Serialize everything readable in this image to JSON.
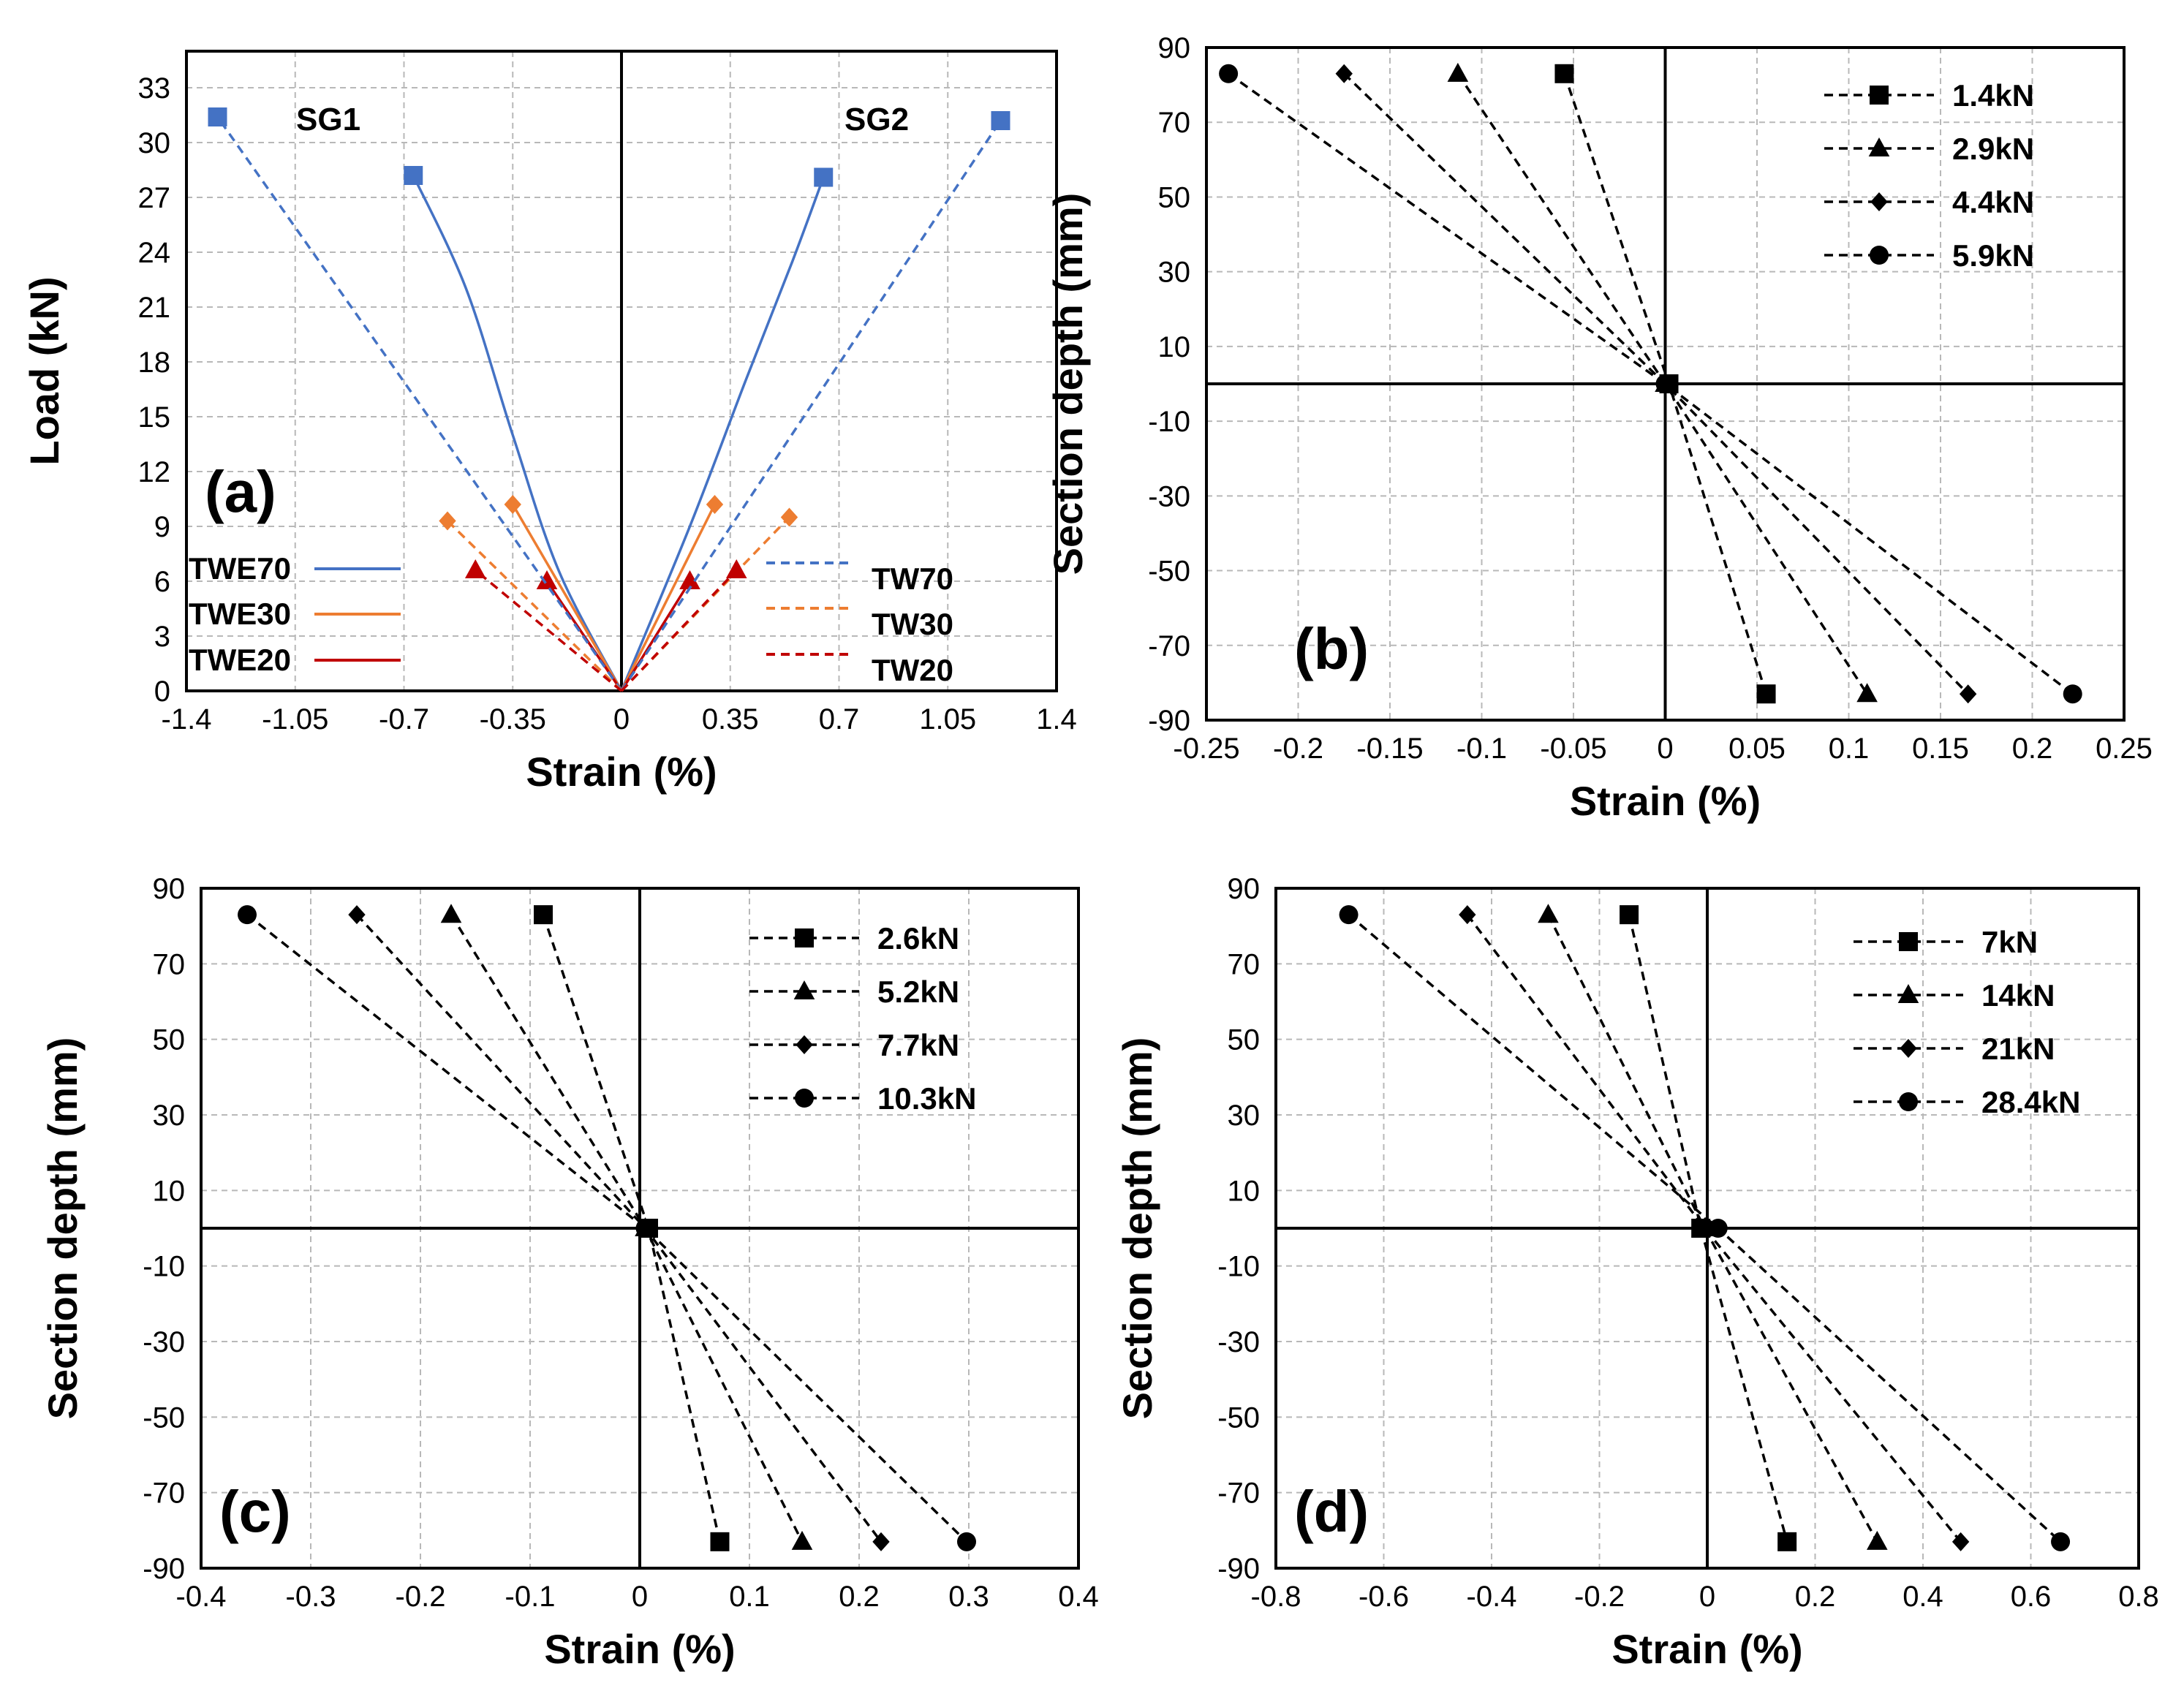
{
  "chart_data": [
    {
      "type": "line",
      "panel_label": "(a)",
      "title": "",
      "xlabel": "Strain (%)",
      "ylabel": "Load (kN)",
      "xlim": [
        -1.4,
        1.4
      ],
      "ylim": [
        0,
        35
      ],
      "xticks": [
        -1.4,
        -1.05,
        -0.7,
        -0.35,
        0,
        0.35,
        0.7,
        1.05,
        1.4
      ],
      "xtick_labels": [
        "-1.4",
        "-1.05",
        "-0.7",
        "-0.35",
        "0",
        "0.35",
        "0.7",
        "1.05",
        "1.4"
      ],
      "yticks": [
        0,
        3,
        6,
        9,
        12,
        15,
        18,
        21,
        24,
        27,
        30,
        33
      ],
      "ytick_labels": [
        "0",
        "3",
        "6",
        "9",
        "12",
        "15",
        "18",
        "21",
        "24",
        "27",
        "30",
        "33"
      ],
      "annotations": [
        "SG1",
        "SG2"
      ],
      "series": [
        {
          "name": "TWE70",
          "color": "#4472C4",
          "dash": "solid",
          "marker": "square",
          "points": [
            [
              0,
              0
            ],
            [
              -0.2,
              6.5
            ],
            [
              -0.35,
              14
            ],
            [
              -0.5,
              22
            ],
            [
              -0.67,
              28.2
            ]
          ]
        },
        {
          "name": "TWE70",
          "color": "#4472C4",
          "dash": "solid",
          "marker": "square",
          "legend": false,
          "points": [
            [
              0,
              0
            ],
            [
              0.22,
              9
            ],
            [
              0.4,
              17
            ],
            [
              0.55,
              23.5
            ],
            [
              0.65,
              28.1
            ]
          ]
        },
        {
          "name": "TWE30",
          "color": "#ED7D31",
          "dash": "solid",
          "marker": "diamond",
          "points": [
            [
              0,
              0
            ],
            [
              -0.35,
              10.2
            ]
          ]
        },
        {
          "name": "TWE30",
          "color": "#ED7D31",
          "dash": "solid",
          "marker": "diamond",
          "legend": false,
          "points": [
            [
              0,
              0
            ],
            [
              0.3,
              10.2
            ]
          ]
        },
        {
          "name": "TWE20",
          "color": "#C00000",
          "dash": "solid",
          "marker": "triangle",
          "points": [
            [
              0,
              0
            ],
            [
              -0.24,
              6
            ]
          ]
        },
        {
          "name": "TWE20",
          "color": "#C00000",
          "dash": "solid",
          "marker": "triangle",
          "legend": false,
          "points": [
            [
              0,
              0
            ],
            [
              0.22,
              6
            ]
          ]
        },
        {
          "name": "TW70",
          "color": "#4472C4",
          "dash": "dashed",
          "marker": "square",
          "points": [
            [
              0,
              0
            ],
            [
              -1.3,
              31.4
            ]
          ]
        },
        {
          "name": "TW70",
          "color": "#4472C4",
          "dash": "dashed",
          "marker": "square",
          "legend": false,
          "points": [
            [
              0,
              0
            ],
            [
              1.22,
              31.2
            ]
          ]
        },
        {
          "name": "TW30",
          "color": "#ED7D31",
          "dash": "dashed",
          "marker": "diamond",
          "points": [
            [
              0,
              0
            ],
            [
              -0.56,
              9.3
            ]
          ]
        },
        {
          "name": "TW30",
          "color": "#ED7D31",
          "dash": "dashed",
          "marker": "diamond",
          "legend": false,
          "points": [
            [
              0,
              0
            ],
            [
              0.54,
              9.5
            ]
          ]
        },
        {
          "name": "TW20",
          "color": "#C00000",
          "dash": "dashed",
          "marker": "triangle",
          "points": [
            [
              0,
              0
            ],
            [
              -0.47,
              6.6
            ]
          ]
        },
        {
          "name": "TW20",
          "color": "#C00000",
          "dash": "dashed",
          "marker": "triangle",
          "legend": false,
          "points": [
            [
              0,
              0
            ],
            [
              0.37,
              6.6
            ]
          ]
        }
      ]
    },
    {
      "type": "line",
      "panel_label": "(b)",
      "title": "",
      "xlabel": "Strain (%)",
      "ylabel": "Section depth (mm)",
      "xlim": [
        -0.25,
        0.25
      ],
      "ylim": [
        -90,
        90
      ],
      "xticks": [
        -0.25,
        -0.2,
        -0.15,
        -0.1,
        -0.05,
        0,
        0.05,
        0.1,
        0.15,
        0.2,
        0.25
      ],
      "xtick_labels": [
        "-0.25",
        "-0.2",
        "-0.15",
        "-0.1",
        "-0.05",
        "0",
        "0.05",
        "0.1",
        "0.15",
        "0.2",
        "0.25"
      ],
      "yticks": [
        90,
        70,
        50,
        30,
        10,
        -10,
        -30,
        -50,
        -70,
        -90
      ],
      "ytick_labels": [
        "90",
        "70",
        "50",
        "30",
        "10",
        "-10",
        "-30",
        "-50",
        "-70",
        "-90"
      ],
      "series": [
        {
          "name": "1.4kN",
          "marker": "square",
          "points": [
            [
              -0.055,
              83
            ],
            [
              0.002,
              0
            ],
            [
              0.055,
              -83
            ]
          ]
        },
        {
          "name": "2.9kN",
          "marker": "triangle",
          "points": [
            [
              -0.113,
              83
            ],
            [
              0,
              0
            ],
            [
              0.11,
              -83
            ]
          ]
        },
        {
          "name": "4.4kN",
          "marker": "diamond",
          "points": [
            [
              -0.175,
              83
            ],
            [
              0,
              0
            ],
            [
              0.165,
              -83
            ]
          ]
        },
        {
          "name": "5.9kN",
          "marker": "circle",
          "points": [
            [
              -0.238,
              83
            ],
            [
              0,
              0
            ],
            [
              0.222,
              -83
            ]
          ]
        }
      ]
    },
    {
      "type": "line",
      "panel_label": "(c)",
      "title": "",
      "xlabel": "Strain (%)",
      "ylabel": "Section depth (mm)",
      "xlim": [
        -0.4,
        0.4
      ],
      "ylim": [
        -90,
        90
      ],
      "xticks": [
        -0.4,
        -0.3,
        -0.2,
        -0.1,
        0,
        0.1,
        0.2,
        0.3,
        0.4
      ],
      "xtick_labels": [
        "-0.4",
        "-0.3",
        "-0.2",
        "-0.1",
        "0",
        "0.1",
        "0.2",
        "0.3",
        "0.4"
      ],
      "yticks": [
        90,
        70,
        50,
        30,
        10,
        -10,
        -30,
        -50,
        -70,
        -90
      ],
      "ytick_labels": [
        "90",
        "70",
        "50",
        "30",
        "10",
        "-10",
        "-30",
        "-50",
        "-70",
        "-90"
      ],
      "series": [
        {
          "name": "2.6kN",
          "marker": "square",
          "points": [
            [
              -0.088,
              83
            ],
            [
              0.008,
              0
            ],
            [
              0.073,
              -83
            ]
          ]
        },
        {
          "name": "5.2kN",
          "marker": "triangle",
          "points": [
            [
              -0.172,
              83
            ],
            [
              0.005,
              0
            ],
            [
              0.148,
              -83
            ]
          ]
        },
        {
          "name": "7.7kN",
          "marker": "diamond",
          "points": [
            [
              -0.258,
              83
            ],
            [
              0.005,
              0
            ],
            [
              0.22,
              -83
            ]
          ]
        },
        {
          "name": "10.3kN",
          "marker": "circle",
          "points": [
            [
              -0.358,
              83
            ],
            [
              0.005,
              0
            ],
            [
              0.298,
              -83
            ]
          ]
        }
      ]
    },
    {
      "type": "line",
      "panel_label": "(d)",
      "title": "",
      "xlabel": "Strain (%)",
      "ylabel": "Section depth (mm)",
      "xlim": [
        -0.8,
        0.8
      ],
      "ylim": [
        -90,
        90
      ],
      "xticks": [
        -0.8,
        -0.6,
        -0.4,
        -0.2,
        0,
        0.2,
        0.4,
        0.6,
        0.8
      ],
      "xtick_labels": [
        "-0.8",
        "-0.6",
        "-0.4",
        "-0.2",
        "0",
        "0.2",
        "0.4",
        "0.6",
        "0.8"
      ],
      "yticks": [
        90,
        70,
        50,
        30,
        10,
        -10,
        -30,
        -50,
        -70,
        -90
      ],
      "ytick_labels": [
        "90",
        "70",
        "50",
        "30",
        "10",
        "-10",
        "-30",
        "-50",
        "-70",
        "-90"
      ],
      "series": [
        {
          "name": "7kN",
          "marker": "square",
          "points": [
            [
              -0.145,
              83
            ],
            [
              -0.012,
              0
            ],
            [
              0.148,
              -83
            ]
          ]
        },
        {
          "name": "14kN",
          "marker": "triangle",
          "points": [
            [
              -0.295,
              83
            ],
            [
              -0.005,
              0
            ],
            [
              0.315,
              -83
            ]
          ]
        },
        {
          "name": "21kN",
          "marker": "diamond",
          "points": [
            [
              -0.445,
              83
            ],
            [
              -0.005,
              0
            ],
            [
              0.47,
              -83
            ]
          ]
        },
        {
          "name": "28.4kN",
          "marker": "circle",
          "points": [
            [
              -0.665,
              83
            ],
            [
              0.02,
              0
            ],
            [
              0.655,
              -83
            ]
          ]
        }
      ]
    }
  ]
}
